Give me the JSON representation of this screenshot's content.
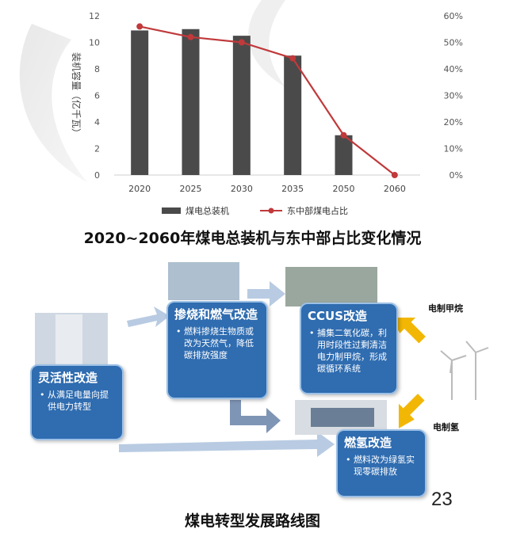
{
  "chart_data": {
    "type": "bar",
    "categories": [
      "2020",
      "2025",
      "2030",
      "2035",
      "2050",
      "2060"
    ],
    "series": [
      {
        "name": "煤电总装机",
        "kind": "bar",
        "values": [
          10.9,
          11.0,
          10.5,
          9.0,
          3.0,
          0
        ],
        "color": "#4a4a4a"
      },
      {
        "name": "东中部煤电占比",
        "kind": "line",
        "values": [
          56,
          52,
          50,
          44,
          15,
          0
        ],
        "color": "#c0393b"
      }
    ],
    "ylabel": "装机容量（亿千瓦）",
    "ylim": [
      0,
      12
    ],
    "yticks": [
      "0",
      "2",
      "4",
      "6",
      "8",
      "10",
      "12"
    ],
    "y2lim": [
      0,
      60
    ],
    "y2ticks": [
      "0%",
      "10%",
      "20%",
      "30%",
      "40%",
      "50%",
      "60%"
    ],
    "legend_position": "bottom",
    "grid": false
  },
  "captions": {
    "chart_title": "2020~2060年煤电总装机与东中部占比变化情况",
    "diagram_title": "煤电转型发展路线图"
  },
  "roadmap": {
    "flexibility": {
      "title": "灵活性改造",
      "desc": "• 从满足电量向提供电力转型"
    },
    "co_firing": {
      "title": "掺烧和燃气改造",
      "desc": "• 燃料掺烧生物质或改为天然气，降低碳排放强度"
    },
    "ccus": {
      "title": "CCUS改造",
      "desc": "• 捕集二氧化碳，利用时段性过剩清洁电力制甲烷，形成碳循环系统"
    },
    "hydrogen": {
      "title": "燃氢改造",
      "desc": "• 燃料改为绿氢实现零碳排放"
    },
    "label_methane": "电制甲烷",
    "label_hydrogen": "电制氢"
  },
  "page_number": "23"
}
